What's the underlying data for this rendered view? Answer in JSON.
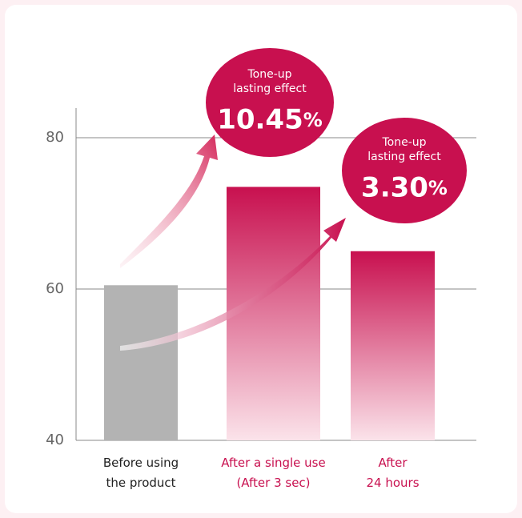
{
  "chart_data": {
    "type": "bar",
    "categories": [
      "Before using\nthe product",
      "After a single use\n(After 3 sec)",
      "After\n24 hours"
    ],
    "values": [
      60.5,
      73.5,
      65
    ],
    "colors": [
      "#b3b3b3",
      "#c8104f",
      "#c8104f"
    ],
    "label_colors": [
      "#222222",
      "#c8104f",
      "#c8104f"
    ],
    "ylim": [
      40,
      80
    ],
    "yticks": [
      40,
      60,
      80
    ],
    "grid": true,
    "annotations": [
      {
        "text": "Tone-up\nlasting effect",
        "label": "10.45%"
      },
      {
        "text": "Tone-up\nlasting effect",
        "label": "3.30%"
      }
    ]
  }
}
